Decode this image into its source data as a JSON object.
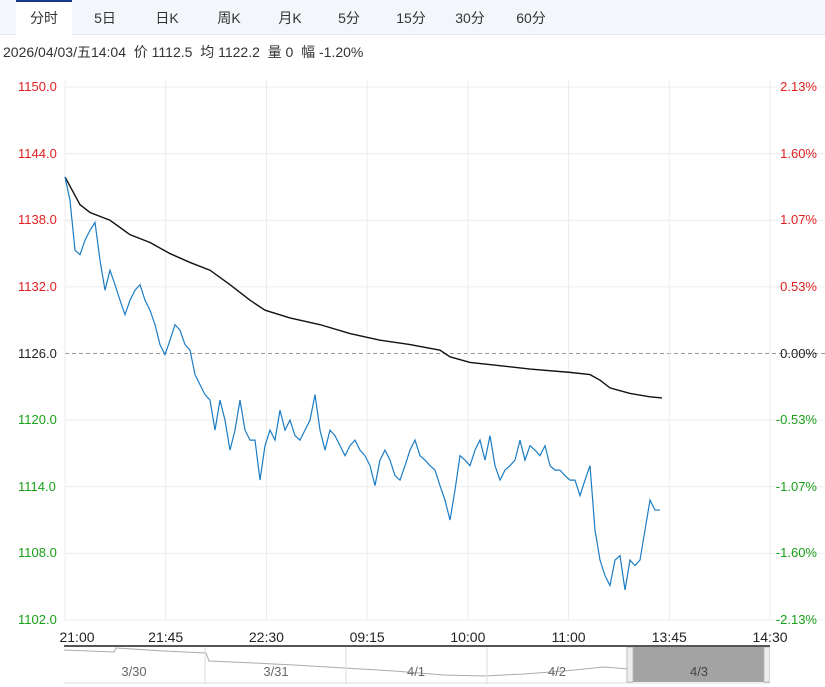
{
  "tabs": [
    "分时",
    "5日",
    "日K",
    "周K",
    "月K",
    "5分",
    "15分",
    "30分",
    "60分"
  ],
  "active_tab": 0,
  "info": {
    "datetime": "2026/04/03/五14:04",
    "price_label": "价",
    "price": "1112.5",
    "avg_label": "均",
    "avg": "1122.2",
    "vol_label": "量",
    "vol": "0",
    "chg_label": "幅",
    "chg": "-1.20%"
  },
  "colors": {
    "up": "#e02020",
    "down": "#18a018",
    "price_line": "#1a7cc4",
    "avg_line": "#111111"
  },
  "chart_data": {
    "type": "line",
    "title": "",
    "ylim": [
      1102.0,
      1150.0
    ],
    "prev_close": 1126.0,
    "y_ticks_left": [
      "1150.0",
      "1144.0",
      "1138.0",
      "1132.0",
      "1126.0",
      "1120.0",
      "1114.0",
      "1108.0",
      "1102.0"
    ],
    "y_ticks_right": [
      "2.13%",
      "1.60%",
      "1.07%",
      "0.53%",
      "0.00%",
      "-0.53%",
      "-1.07%",
      "-1.60%",
      "-2.13%"
    ],
    "x_ticks": [
      "21:00",
      "21:45",
      "22:30",
      "09:15",
      "10:00",
      "11:00",
      "13:45",
      "14:30"
    ],
    "x_range": [
      0,
      141
    ],
    "series": [
      {
        "name": "价",
        "values": [
          1141.9,
          1139.8,
          1135.3,
          1134.9,
          1136.2,
          1137.1,
          1137.8,
          1134.4,
          1131.7,
          1133.5,
          1132.2,
          1130.8,
          1129.5,
          1130.8,
          1131.7,
          1132.2,
          1130.8,
          1129.9,
          1128.6,
          1126.8,
          1125.9,
          1127.2,
          1128.6,
          1128.1,
          1126.8,
          1126.3,
          1124.1,
          1123.2,
          1122.3,
          1121.8,
          1119.1,
          1121.8,
          1120.0,
          1117.3,
          1119.1,
          1121.8,
          1119.1,
          1118.2,
          1118.2,
          1114.6,
          1117.7,
          1119.1,
          1118.2,
          1120.9,
          1119.1,
          1120.0,
          1118.6,
          1118.2,
          1119.1,
          1120.0,
          1122.3,
          1119.1,
          1117.3,
          1119.1,
          1118.6,
          1117.7,
          1116.8,
          1117.7,
          1118.2,
          1117.3,
          1116.8,
          1115.9,
          1114.1,
          1116.4,
          1117.3,
          1116.4,
          1115.0,
          1114.6,
          1115.9,
          1117.3,
          1118.2,
          1116.8,
          1116.4,
          1115.9,
          1115.5,
          1114.1,
          1112.8,
          1111.0,
          1113.7,
          1116.8,
          1116.4,
          1115.9,
          1117.3,
          1118.2,
          1116.4,
          1118.6,
          1115.9,
          1114.6,
          1115.5,
          1115.9,
          1116.4,
          1118.2,
          1116.4,
          1117.7,
          1117.3,
          1116.8,
          1117.7,
          1115.9,
          1115.5,
          1115.5,
          1115.0,
          1114.6,
          1114.6,
          1113.2,
          1114.6,
          1115.9,
          1110.1,
          1107.4,
          1106.0,
          1105.1,
          1107.4,
          1107.8,
          1104.7,
          1107.4,
          1106.9,
          1107.4,
          1110.1,
          1112.8,
          1111.9,
          1111.9
        ]
      },
      {
        "name": "均",
        "points": [
          [
            0,
            1141.9
          ],
          [
            3,
            1139.4
          ],
          [
            5,
            1138.7
          ],
          [
            9,
            1138.0
          ],
          [
            13,
            1136.7
          ],
          [
            17,
            1136.0
          ],
          [
            21,
            1135.0
          ],
          [
            25,
            1134.2
          ],
          [
            29,
            1133.5
          ],
          [
            33,
            1132.2
          ],
          [
            37,
            1130.8
          ],
          [
            40,
            1129.9
          ],
          [
            45,
            1129.2
          ],
          [
            51,
            1128.6
          ],
          [
            57,
            1127.8
          ],
          [
            63,
            1127.2
          ],
          [
            69,
            1126.8
          ],
          [
            75,
            1126.3
          ],
          [
            77,
            1125.7
          ],
          [
            81,
            1125.2
          ],
          [
            87,
            1124.9
          ],
          [
            93,
            1124.6
          ],
          [
            101,
            1124.3
          ],
          [
            105,
            1124.1
          ],
          [
            107,
            1123.6
          ],
          [
            109,
            1122.9
          ],
          [
            113,
            1122.4
          ],
          [
            117,
            1122.1
          ],
          [
            119.4,
            1122.0
          ]
        ]
      }
    ],
    "navigator_labels": [
      "3/30",
      "3/31",
      "4/1",
      "4/2",
      "4/3"
    ]
  }
}
